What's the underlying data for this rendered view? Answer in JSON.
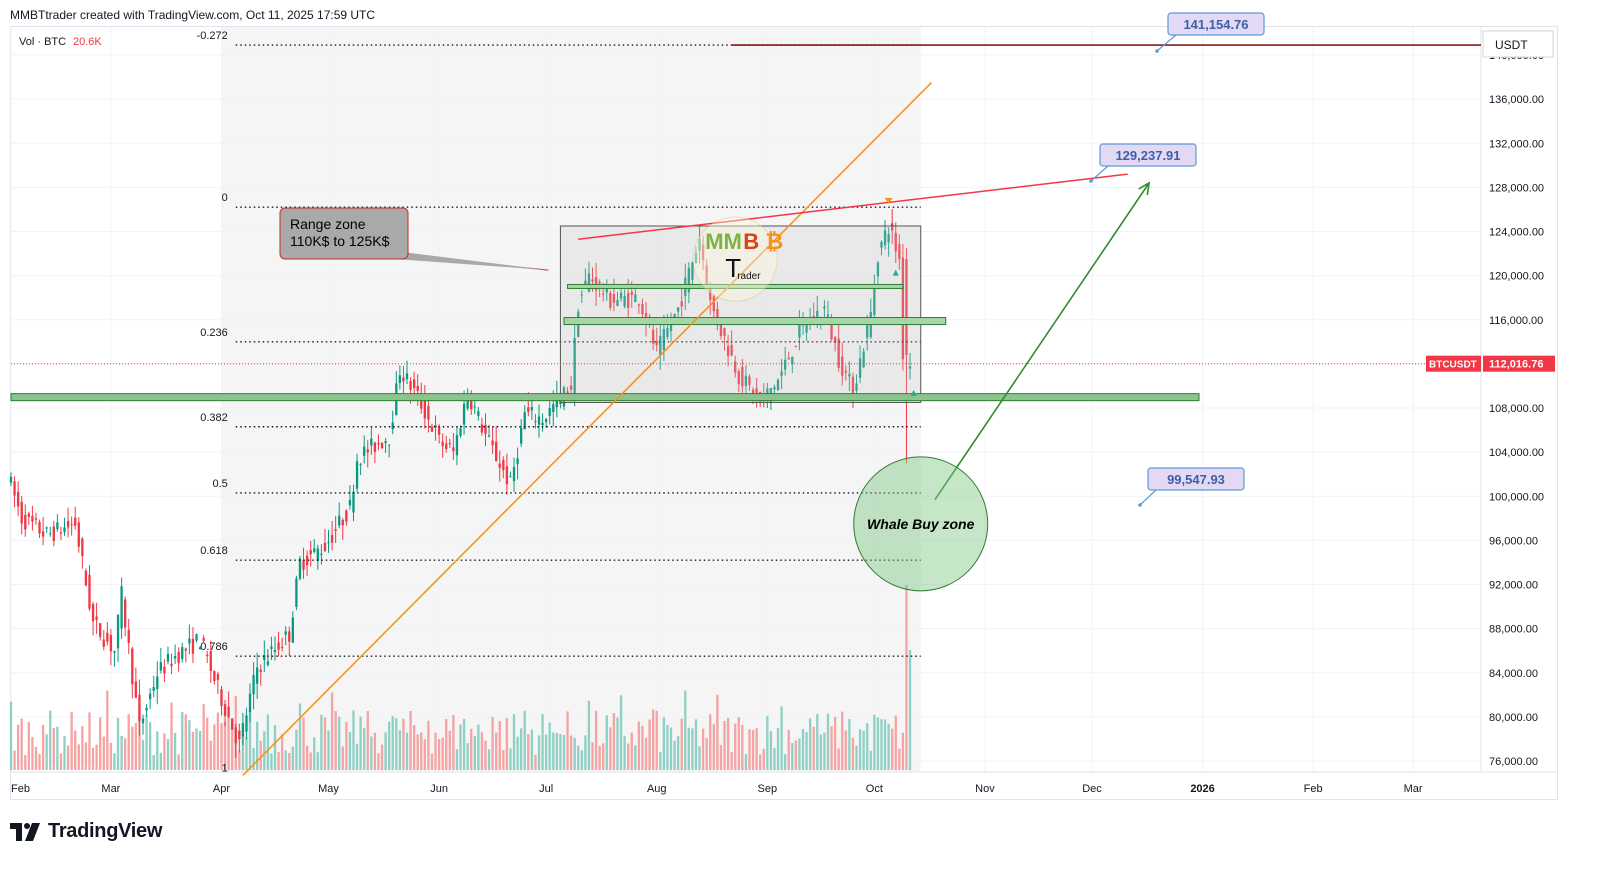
{
  "header": {
    "credit": "MMBTtrader created with TradingView.com, Oct 11, 2025 17:59 UTC"
  },
  "footer": {
    "brand": "TradingView"
  },
  "chart_data": {
    "type": "candlestick",
    "symbol": "BTCUSDT",
    "quote_currency": "USDT",
    "volume_label": "Vol · BTC",
    "volume_value": "20.6K",
    "last_price_label": "112,016.76",
    "last_price": 112016.76,
    "y_axis": {
      "min": 74000,
      "max": 145000,
      "ticks": [
        76000,
        80000,
        84000,
        88000,
        92000,
        96000,
        100000,
        104000,
        108000,
        112000,
        116000,
        120000,
        124000,
        128000,
        132000,
        136000,
        140000
      ],
      "tick_labels": [
        "76,000.00",
        "80,000.00",
        "84,000.00",
        "88,000.00",
        "92,000.00",
        "96,000.00",
        "100,000.00",
        "104,000.00",
        "108,000.00",
        "112,000.00",
        "116,000.00",
        "120,000.00",
        "124,000.00",
        "128,000.00",
        "132,000.00",
        "136,000.00",
        "140,000.00"
      ]
    },
    "x_axis": {
      "start": "2025-02-01",
      "end": "2026-03-31",
      "ticks": [
        {
          "date": "2025-02-01",
          "label": "Feb"
        },
        {
          "date": "2025-03-01",
          "label": "Mar"
        },
        {
          "date": "2025-04-01",
          "label": "Apr"
        },
        {
          "date": "2025-05-01",
          "label": "May"
        },
        {
          "date": "2025-06-01",
          "label": "Jun"
        },
        {
          "date": "2025-07-01",
          "label": "Jul"
        },
        {
          "date": "2025-08-01",
          "label": "Aug"
        },
        {
          "date": "2025-09-01",
          "label": "Sep"
        },
        {
          "date": "2025-10-01",
          "label": "Oct"
        },
        {
          "date": "2025-11-01",
          "label": "Nov"
        },
        {
          "date": "2025-12-01",
          "label": "Dec"
        },
        {
          "date": "2026-01-01",
          "label": "2026",
          "bold": true
        },
        {
          "date": "2026-02-01",
          "label": "Feb"
        },
        {
          "date": "2026-03-01",
          "label": "Mar"
        }
      ]
    },
    "price_path": [
      {
        "date": "2025-02-01",
        "price": 102000
      },
      {
        "date": "2025-02-05",
        "price": 98000
      },
      {
        "date": "2025-02-12",
        "price": 96500
      },
      {
        "date": "2025-02-20",
        "price": 97500
      },
      {
        "date": "2025-02-25",
        "price": 88500
      },
      {
        "date": "2025-03-03",
        "price": 86000
      },
      {
        "date": "2025-03-05",
        "price": 91000
      },
      {
        "date": "2025-03-10",
        "price": 79000
      },
      {
        "date": "2025-03-15",
        "price": 84000
      },
      {
        "date": "2025-03-20",
        "price": 85500
      },
      {
        "date": "2025-03-27",
        "price": 87000
      },
      {
        "date": "2025-04-01",
        "price": 82500
      },
      {
        "date": "2025-04-07",
        "price": 77500
      },
      {
        "date": "2025-04-12",
        "price": 84500
      },
      {
        "date": "2025-04-21",
        "price": 87500
      },
      {
        "date": "2025-04-24",
        "price": 94000
      },
      {
        "date": "2025-05-01",
        "price": 95500
      },
      {
        "date": "2025-05-08",
        "price": 99000
      },
      {
        "date": "2025-05-10",
        "price": 103500
      },
      {
        "date": "2025-05-19",
        "price": 105500
      },
      {
        "date": "2025-05-22",
        "price": 111500
      },
      {
        "date": "2025-05-27",
        "price": 109000
      },
      {
        "date": "2025-06-02",
        "price": 105000
      },
      {
        "date": "2025-06-06",
        "price": 104000
      },
      {
        "date": "2025-06-10",
        "price": 109500
      },
      {
        "date": "2025-06-15",
        "price": 105500
      },
      {
        "date": "2025-06-22",
        "price": 101000
      },
      {
        "date": "2025-06-26",
        "price": 107500
      },
      {
        "date": "2025-07-01",
        "price": 107000
      },
      {
        "date": "2025-07-09",
        "price": 110000
      },
      {
        "date": "2025-07-11",
        "price": 117500
      },
      {
        "date": "2025-07-14",
        "price": 120000
      },
      {
        "date": "2025-07-20",
        "price": 117800
      },
      {
        "date": "2025-07-28",
        "price": 118000
      },
      {
        "date": "2025-08-02",
        "price": 113000
      },
      {
        "date": "2025-08-08",
        "price": 117000
      },
      {
        "date": "2025-08-14",
        "price": 123500
      },
      {
        "date": "2025-08-17",
        "price": 117500
      },
      {
        "date": "2025-08-25",
        "price": 111000
      },
      {
        "date": "2025-08-31",
        "price": 108500
      },
      {
        "date": "2025-09-05",
        "price": 110500
      },
      {
        "date": "2025-09-12",
        "price": 115500
      },
      {
        "date": "2025-09-18",
        "price": 117000
      },
      {
        "date": "2025-09-22",
        "price": 112500
      },
      {
        "date": "2025-09-26",
        "price": 109500
      },
      {
        "date": "2025-10-01",
        "price": 116500
      },
      {
        "date": "2025-10-03",
        "price": 122000
      },
      {
        "date": "2025-10-06",
        "price": 124500
      },
      {
        "date": "2025-10-09",
        "price": 121500
      },
      {
        "date": "2025-10-10",
        "price": 113000
      },
      {
        "date": "2025-10-11",
        "price": 112017
      }
    ],
    "fib_levels": [
      {
        "label": "-0.272",
        "price": 140900
      },
      {
        "label": "0",
        "price": 126200
      },
      {
        "label": "0.236",
        "price": 114000
      },
      {
        "label": "0.382",
        "price": 106300
      },
      {
        "label": "0.5",
        "price": 100300
      },
      {
        "label": "0.618",
        "price": 94200
      },
      {
        "label": "0.786",
        "price": 85500
      },
      {
        "label": "1",
        "price": 74500
      }
    ],
    "annotations": {
      "range_zone": {
        "title": "Range zone",
        "subtitle": "110K$ to 125K$",
        "top_price": 124500,
        "bottom_price": 108500,
        "start": "2025-07-05",
        "end": "2025-10-14"
      },
      "whale_zone": {
        "label": "Whale Buy zone",
        "center_date": "2025-10-14",
        "center_price": 97500
      },
      "price_labels": [
        "141,154.76",
        "129,237.91",
        "99,547.93"
      ],
      "support_level": 108800,
      "inner_levels": [
        119000,
        115800
      ],
      "target_line_price": 140900
    },
    "watermark": {
      "letters": "MMB",
      "sub": "Trader"
    }
  }
}
